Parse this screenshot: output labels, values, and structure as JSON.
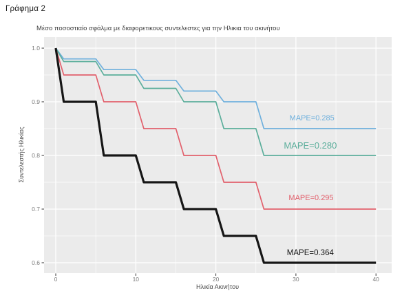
{
  "page": {
    "title": "Γράφημα 2"
  },
  "colors": {
    "panel_bg": "#EBEBEB",
    "grid": "#FFFFFF",
    "tick_mark": "#333333",
    "tick_label": "#7B7B7B",
    "axis_title": "#4A4A4A",
    "title_text": "#3D3D3D",
    "blue": "#6FB0DD",
    "green": "#5BAE9B",
    "red": "#E2606C",
    "black": "#161616"
  },
  "chart_data": {
    "type": "line",
    "step": true,
    "title": "Μέσο ποσοστιαίο σφάλμα με διαφορετικους συντελεστες για την Ηλικια του ακινήτου",
    "xlabel": "Ηλικία Ακινήτου",
    "ylabel": "Συντελεστής Ηλικίας",
    "xlim": [
      -1.5,
      42
    ],
    "ylim": [
      0.58,
      1.02
    ],
    "grid": "major+minor white on grey panel",
    "legend_position": "inline-annotations",
    "x_ticks": {
      "values": [
        0,
        10,
        20,
        30,
        40
      ],
      "labels": [
        "0",
        "10",
        "20",
        "30",
        "40"
      ],
      "minor": [
        5,
        15,
        25,
        35
      ]
    },
    "y_ticks": {
      "values": [
        1.0,
        0.9,
        0.8,
        0.7,
        0.6
      ],
      "labels": [
        "1.0",
        "0.9",
        "0.8",
        "0.7",
        "0.6"
      ],
      "minor": [
        0.95,
        0.85,
        0.75,
        0.65
      ]
    },
    "series": [
      {
        "name": "MAPE=0.285",
        "color": "#6FB0DD",
        "line_width": 1.7,
        "points": [
          [
            0,
            1.0
          ],
          [
            1,
            0.98
          ],
          [
            5,
            0.98
          ],
          [
            6,
            0.96
          ],
          [
            10,
            0.96
          ],
          [
            11,
            0.94
          ],
          [
            15,
            0.94
          ],
          [
            16,
            0.92
          ],
          [
            20,
            0.92
          ],
          [
            21,
            0.9
          ],
          [
            25,
            0.9
          ],
          [
            26,
            0.85
          ],
          [
            40,
            0.85
          ]
        ],
        "annotation": {
          "text": "MAPE=0.285",
          "x": 32.0,
          "y": 0.868,
          "font_size": 11,
          "weight": 400
        }
      },
      {
        "name": "MAPE=0.280",
        "color": "#5BAE9B",
        "line_width": 1.7,
        "points": [
          [
            0,
            1.0
          ],
          [
            1,
            0.975
          ],
          [
            5,
            0.975
          ],
          [
            6,
            0.95
          ],
          [
            10,
            0.95
          ],
          [
            11,
            0.925
          ],
          [
            15,
            0.925
          ],
          [
            16,
            0.9
          ],
          [
            20,
            0.9
          ],
          [
            21,
            0.85
          ],
          [
            25,
            0.85
          ],
          [
            26,
            0.8
          ],
          [
            40,
            0.8
          ]
        ],
        "annotation": {
          "text": "MAPE=0.280",
          "x": 31.8,
          "y": 0.818,
          "font_size": 13,
          "weight": 400
        }
      },
      {
        "name": "MAPE=0.295",
        "color": "#E2606C",
        "line_width": 1.7,
        "points": [
          [
            0,
            1.0
          ],
          [
            1,
            0.95
          ],
          [
            5,
            0.95
          ],
          [
            6,
            0.9
          ],
          [
            10,
            0.9
          ],
          [
            11,
            0.85
          ],
          [
            15,
            0.85
          ],
          [
            16,
            0.8
          ],
          [
            20,
            0.8
          ],
          [
            21,
            0.75
          ],
          [
            25,
            0.75
          ],
          [
            26,
            0.7
          ],
          [
            40,
            0.7
          ]
        ],
        "annotation": {
          "text": "MAPE=0.295",
          "x": 31.9,
          "y": 0.719,
          "font_size": 11,
          "weight": 400
        }
      },
      {
        "name": "MAPE=0.364",
        "color": "#161616",
        "line_width": 3.2,
        "points": [
          [
            0,
            1.0
          ],
          [
            1,
            0.9
          ],
          [
            5,
            0.9
          ],
          [
            6,
            0.8
          ],
          [
            10,
            0.8
          ],
          [
            11,
            0.75
          ],
          [
            15,
            0.75
          ],
          [
            16,
            0.7
          ],
          [
            20,
            0.7
          ],
          [
            21,
            0.65
          ],
          [
            25,
            0.65
          ],
          [
            26,
            0.6
          ],
          [
            40,
            0.6
          ]
        ],
        "annotation": {
          "text": "MAPE=0.364",
          "x": 31.8,
          "y": 0.617,
          "font_size": 11.5,
          "weight": 500
        }
      }
    ]
  }
}
